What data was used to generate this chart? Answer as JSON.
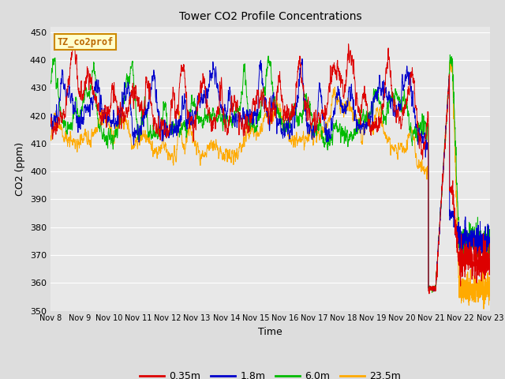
{
  "title": "Tower CO2 Profile Concentrations",
  "xlabel": "Time",
  "ylabel": "CO2 (ppm)",
  "ylim": [
    350,
    452
  ],
  "yticks": [
    350,
    360,
    370,
    380,
    390,
    400,
    410,
    420,
    430,
    440,
    450
  ],
  "legend_label": "TZ_co2prof",
  "series_labels": [
    "0.35m",
    "1.8m",
    "6.0m",
    "23.5m"
  ],
  "series_colors": [
    "#dd0000",
    "#0000cc",
    "#00bb00",
    "#ffaa00"
  ],
  "background_color": "#dddddd",
  "plot_bg_color": "#e8e8e8",
  "grid_color": "#ffffff",
  "xtick_labels": [
    "Nov 8",
    "Nov 9",
    "Nov 10",
    "Nov 11",
    "Nov 12",
    "Nov 13",
    "Nov 14",
    "Nov 15",
    "Nov 16",
    "Nov 17",
    "Nov 18",
    "Nov 19",
    "Nov 20",
    "Nov 21",
    "Nov 22",
    "Nov 23"
  ],
  "xtick_positions": [
    0,
    1,
    2,
    3,
    4,
    5,
    6,
    7,
    8,
    9,
    10,
    11,
    12,
    13,
    14,
    15
  ]
}
